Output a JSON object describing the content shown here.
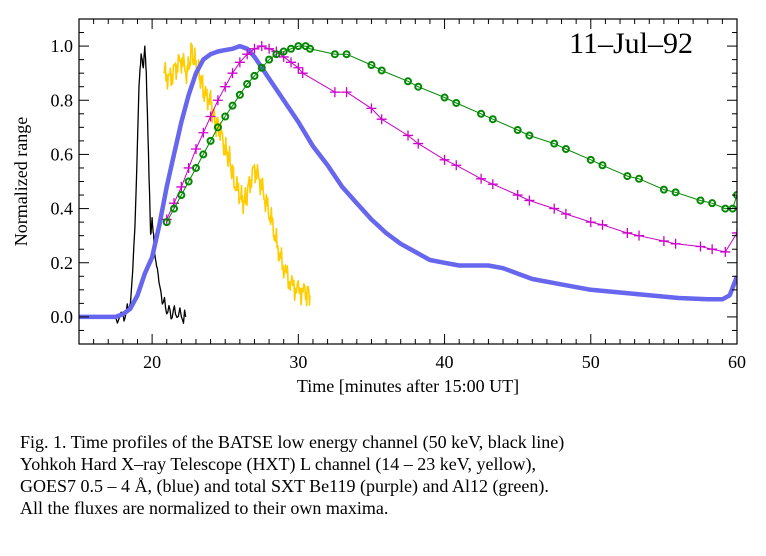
{
  "chart_data": {
    "type": "line",
    "title": "",
    "annotation": "11–Jul–92",
    "xlabel": "Time [minutes after 15:00 UT]",
    "ylabel": "Normalized range",
    "xlim": [
      15,
      60
    ],
    "ylim": [
      -0.1,
      1.1
    ],
    "xticks": [
      20,
      30,
      40,
      50,
      60
    ],
    "xtick_labels": [
      "20",
      "30",
      "40",
      "50",
      "60"
    ],
    "yticks": [
      0.0,
      0.2,
      0.4,
      0.6,
      0.8,
      1.0
    ],
    "ytick_labels": [
      "0.0",
      "0.2",
      "0.4",
      "0.6",
      "0.8",
      "1.0"
    ],
    "grid": false,
    "legend": "none",
    "series": [
      {
        "name": "BATSE 50 keV",
        "color": "#000000",
        "style": "line",
        "x": [
          17.5,
          18.0,
          18.3,
          18.6,
          18.9,
          19.1,
          19.25,
          19.4,
          19.5,
          19.6,
          19.75,
          19.9,
          20.0,
          20.1,
          20.2,
          20.35,
          20.5,
          20.7,
          21.0,
          21.3,
          21.6,
          22.0,
          22.3
        ],
        "y": [
          0.0,
          0.0,
          0.02,
          0.08,
          0.45,
          0.85,
          0.97,
          0.92,
          1.0,
          0.9,
          0.6,
          0.3,
          0.36,
          0.3,
          0.22,
          0.18,
          0.12,
          0.06,
          0.03,
          0.01,
          0.02,
          0.0,
          0.0
        ]
      },
      {
        "name": "HXT L 14-23 keV",
        "color": "#ffcc00",
        "style": "line",
        "x": [
          20.8,
          21.2,
          21.6,
          22.0,
          22.4,
          22.7,
          23.0,
          23.3,
          23.6,
          24.0,
          24.3,
          24.6,
          25.0,
          25.3,
          25.6,
          26.0,
          26.3,
          26.6,
          27.0,
          27.4,
          27.8,
          28.2,
          28.6,
          29.0,
          29.5,
          30.0,
          30.5,
          30.8
        ],
        "y": [
          0.9,
          0.88,
          0.92,
          0.95,
          0.9,
          0.98,
          0.93,
          0.88,
          0.82,
          0.8,
          0.72,
          0.7,
          0.62,
          0.58,
          0.5,
          0.45,
          0.42,
          0.48,
          0.55,
          0.5,
          0.42,
          0.35,
          0.25,
          0.18,
          0.12,
          0.1,
          0.09,
          0.08
        ]
      },
      {
        "name": "GOES7 0.5-4 Å",
        "color": "#6666ee",
        "style": "line",
        "x": [
          15,
          16,
          17,
          17.5,
          18.0,
          18.5,
          19.0,
          19.5,
          20.0,
          20.5,
          21.0,
          21.5,
          22.0,
          22.5,
          23.0,
          23.5,
          24.0,
          24.5,
          25.0,
          25.5,
          26.0,
          26.5,
          27.0,
          28.0,
          29.0,
          30.0,
          31.0,
          32.0,
          33.0,
          34.0,
          35.0,
          36.0,
          37.0,
          38.0,
          39.0,
          40.0,
          41.0,
          42.0,
          43.0,
          44.0,
          45.0,
          46.0,
          48.0,
          50.0,
          52.0,
          54.0,
          56.0,
          58.0,
          59.0,
          59.5,
          60.0
        ],
        "y": [
          0.0,
          0.0,
          0.0,
          0.0,
          0.01,
          0.03,
          0.08,
          0.16,
          0.22,
          0.34,
          0.48,
          0.6,
          0.72,
          0.82,
          0.9,
          0.95,
          0.97,
          0.98,
          0.985,
          0.99,
          1.0,
          0.99,
          0.96,
          0.88,
          0.8,
          0.72,
          0.63,
          0.56,
          0.48,
          0.42,
          0.36,
          0.31,
          0.27,
          0.24,
          0.21,
          0.2,
          0.19,
          0.19,
          0.19,
          0.18,
          0.16,
          0.14,
          0.12,
          0.1,
          0.09,
          0.08,
          0.07,
          0.065,
          0.065,
          0.08,
          0.15
        ]
      },
      {
        "name": "SXT Be119",
        "color": "#cc00cc",
        "style": "line+plus",
        "x": [
          21.0,
          21.5,
          22.0,
          22.5,
          23.0,
          23.5,
          24.0,
          24.5,
          25.0,
          25.5,
          26.0,
          26.5,
          27.0,
          27.5,
          28.0,
          28.5,
          29.0,
          29.5,
          30.0,
          30.3,
          32.5,
          33.3,
          35.0,
          35.7,
          37.5,
          38.2,
          40.0,
          40.8,
          42.5,
          43.3,
          45.0,
          45.8,
          47.5,
          48.3,
          50.0,
          50.8,
          52.5,
          53.3,
          55.0,
          55.8,
          57.5,
          58.3,
          59.2,
          60.0
        ],
        "y": [
          0.36,
          0.42,
          0.48,
          0.55,
          0.62,
          0.68,
          0.74,
          0.8,
          0.85,
          0.9,
          0.94,
          0.97,
          0.99,
          1.0,
          0.99,
          0.98,
          0.96,
          0.94,
          0.92,
          0.9,
          0.83,
          0.83,
          0.77,
          0.73,
          0.67,
          0.64,
          0.58,
          0.56,
          0.51,
          0.49,
          0.45,
          0.43,
          0.4,
          0.38,
          0.35,
          0.34,
          0.31,
          0.3,
          0.28,
          0.27,
          0.26,
          0.25,
          0.24,
          0.31
        ]
      },
      {
        "name": "SXT Al12",
        "color": "#008800",
        "style": "line+circle",
        "x": [
          21.0,
          21.5,
          22.0,
          22.5,
          23.0,
          23.5,
          24.0,
          24.5,
          25.0,
          25.5,
          26.0,
          26.5,
          27.0,
          27.5,
          28.0,
          28.5,
          29.0,
          29.5,
          30.0,
          30.5,
          30.8,
          32.5,
          33.3,
          35.0,
          35.7,
          37.5,
          38.2,
          40.0,
          40.8,
          42.5,
          43.3,
          45.0,
          45.8,
          47.5,
          48.3,
          50.0,
          50.8,
          52.5,
          53.3,
          55.0,
          55.8,
          57.5,
          58.3,
          59.2,
          59.7,
          60.0
        ],
        "y": [
          0.35,
          0.4,
          0.45,
          0.5,
          0.55,
          0.6,
          0.65,
          0.7,
          0.74,
          0.78,
          0.82,
          0.86,
          0.89,
          0.92,
          0.95,
          0.97,
          0.98,
          0.99,
          1.0,
          1.0,
          0.99,
          0.97,
          0.97,
          0.93,
          0.91,
          0.87,
          0.85,
          0.81,
          0.79,
          0.75,
          0.73,
          0.69,
          0.67,
          0.64,
          0.62,
          0.58,
          0.56,
          0.52,
          0.51,
          0.47,
          0.46,
          0.43,
          0.42,
          0.4,
          0.4,
          0.45
        ]
      }
    ]
  },
  "caption": {
    "lines": [
      "Fig. 1. Time profiles of the  BATSE low energy channel (50 keV, black line)",
      "Yohkoh Hard X–ray Telescope (HXT) L channel (14 – 23 keV, yellow),",
      "GOES7 0.5 – 4 Å, (blue) and total SXT Be119 (purple) and Al12 (green).",
      "All the fluxes are normalized to their own maxima."
    ]
  }
}
